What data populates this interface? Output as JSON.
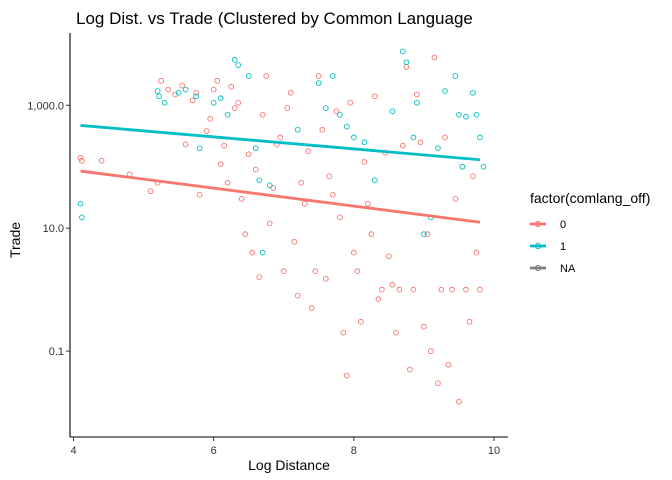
{
  "chart_data": {
    "type": "scatter",
    "title": "Log Dist. vs Trade (Clustered by Common Language",
    "xlabel": "Log Distance",
    "ylabel": "Trade",
    "x_scale": "linear",
    "y_scale": "log10",
    "xlim": [
      3.95,
      10.2
    ],
    "ylim": [
      0.004,
      15000
    ],
    "x_ticks": [
      4,
      6,
      8,
      10
    ],
    "x_tick_labels": [
      "4",
      "6",
      "8",
      "10"
    ],
    "y_ticks": [
      0.1,
      10,
      1000
    ],
    "y_tick_labels": [
      "0.1",
      "10.0",
      "1,000.0"
    ],
    "grid": false,
    "legend": {
      "title": "factor(comlang_off)",
      "position": "right",
      "entries": [
        {
          "label": "0",
          "color": "#F8766D"
        },
        {
          "label": "1",
          "color": "#00BFC4"
        },
        {
          "label": "NA",
          "color": "#7F7F7F"
        }
      ]
    },
    "series": [
      {
        "name": "0",
        "color": "#F8766D",
        "fit_line": {
          "x": [
            4.1,
            9.8
          ],
          "y": [
            85,
            12.5
          ]
        },
        "points": [
          [
            4.1,
            140
          ],
          [
            4.12,
            125
          ],
          [
            4.4,
            125
          ],
          [
            4.8,
            75
          ],
          [
            5.1,
            40
          ],
          [
            5.2,
            55
          ],
          [
            5.25,
            2500
          ],
          [
            5.35,
            1800
          ],
          [
            5.45,
            1500
          ],
          [
            5.55,
            2100
          ],
          [
            5.6,
            230
          ],
          [
            5.7,
            1200
          ],
          [
            5.75,
            1600
          ],
          [
            5.8,
            35
          ],
          [
            5.9,
            380
          ],
          [
            5.95,
            600
          ],
          [
            6.0,
            1800
          ],
          [
            6.05,
            2500
          ],
          [
            6.1,
            110
          ],
          [
            6.15,
            220
          ],
          [
            6.2,
            55
          ],
          [
            6.25,
            2000
          ],
          [
            6.3,
            900
          ],
          [
            6.35,
            1100
          ],
          [
            6.4,
            30
          ],
          [
            6.45,
            8
          ],
          [
            6.5,
            160
          ],
          [
            6.55,
            4
          ],
          [
            6.6,
            90
          ],
          [
            6.65,
            1.6
          ],
          [
            6.7,
            700
          ],
          [
            6.75,
            3000
          ],
          [
            6.8,
            12
          ],
          [
            6.85,
            45
          ],
          [
            6.9,
            230
          ],
          [
            6.95,
            300
          ],
          [
            7.0,
            2
          ],
          [
            7.05,
            900
          ],
          [
            7.1,
            1600
          ],
          [
            7.15,
            6
          ],
          [
            7.2,
            0.8
          ],
          [
            7.25,
            55
          ],
          [
            7.3,
            25
          ],
          [
            7.35,
            180
          ],
          [
            7.4,
            0.5
          ],
          [
            7.45,
            2
          ],
          [
            7.5,
            3000
          ],
          [
            7.55,
            400
          ],
          [
            7.6,
            1.5
          ],
          [
            7.65,
            70
          ],
          [
            7.7,
            35
          ],
          [
            7.75,
            800
          ],
          [
            7.8,
            15
          ],
          [
            7.85,
            0.2
          ],
          [
            7.9,
            0.04
          ],
          [
            7.95,
            1100
          ],
          [
            8.0,
            4
          ],
          [
            8.05,
            2
          ],
          [
            8.1,
            0.3
          ],
          [
            8.15,
            120
          ],
          [
            8.2,
            25
          ],
          [
            8.25,
            8
          ],
          [
            8.3,
            1400
          ],
          [
            8.35,
            0.7
          ],
          [
            8.4,
            1
          ],
          [
            8.45,
            170
          ],
          [
            8.5,
            3.5
          ],
          [
            8.55,
            1.2
          ],
          [
            8.6,
            0.2
          ],
          [
            8.65,
            1
          ],
          [
            8.7,
            220
          ],
          [
            8.75,
            4200
          ],
          [
            8.8,
            0.05
          ],
          [
            8.85,
            1
          ],
          [
            8.9,
            1500
          ],
          [
            8.95,
            250
          ],
          [
            9.0,
            0.25
          ],
          [
            9.05,
            8
          ],
          [
            9.1,
            0.1
          ],
          [
            9.15,
            6000
          ],
          [
            9.2,
            0.03
          ],
          [
            9.25,
            1
          ],
          [
            9.3,
            300
          ],
          [
            9.35,
            0.06
          ],
          [
            9.4,
            1
          ],
          [
            9.45,
            30
          ],
          [
            9.5,
            0.015
          ],
          [
            9.55,
            100
          ],
          [
            9.6,
            1
          ],
          [
            9.65,
            0.3
          ],
          [
            9.7,
            70
          ],
          [
            9.75,
            4
          ],
          [
            9.8,
            1
          ]
        ]
      },
      {
        "name": "1",
        "color": "#00BFC4",
        "fit_line": {
          "x": [
            4.1,
            9.8
          ],
          "y": [
            470,
            130
          ]
        },
        "points": [
          [
            4.1,
            25
          ],
          [
            4.12,
            15
          ],
          [
            5.2,
            1700
          ],
          [
            5.22,
            1400
          ],
          [
            5.3,
            1100
          ],
          [
            5.5,
            1600
          ],
          [
            5.6,
            1800
          ],
          [
            5.75,
            1400
          ],
          [
            5.8,
            200
          ],
          [
            6.0,
            1100
          ],
          [
            6.1,
            1300
          ],
          [
            6.2,
            700
          ],
          [
            6.3,
            5500
          ],
          [
            6.35,
            4500
          ],
          [
            6.5,
            3000
          ],
          [
            6.6,
            200
          ],
          [
            6.65,
            60
          ],
          [
            6.7,
            4
          ],
          [
            6.8,
            50
          ],
          [
            7.2,
            400
          ],
          [
            7.5,
            2300
          ],
          [
            7.6,
            900
          ],
          [
            7.7,
            3000
          ],
          [
            7.8,
            700
          ],
          [
            7.9,
            450
          ],
          [
            8.0,
            300
          ],
          [
            8.15,
            250
          ],
          [
            8.3,
            60
          ],
          [
            8.55,
            800
          ],
          [
            8.7,
            7500
          ],
          [
            8.75,
            5000
          ],
          [
            8.85,
            300
          ],
          [
            8.9,
            1100
          ],
          [
            9.0,
            8
          ],
          [
            9.1,
            15
          ],
          [
            9.2,
            200
          ],
          [
            9.3,
            1700
          ],
          [
            9.45,
            3000
          ],
          [
            9.5,
            700
          ],
          [
            9.55,
            100
          ],
          [
            9.6,
            650
          ],
          [
            9.7,
            1600
          ],
          [
            9.75,
            700
          ],
          [
            9.8,
            300
          ],
          [
            9.85,
            100
          ]
        ]
      }
    ]
  }
}
